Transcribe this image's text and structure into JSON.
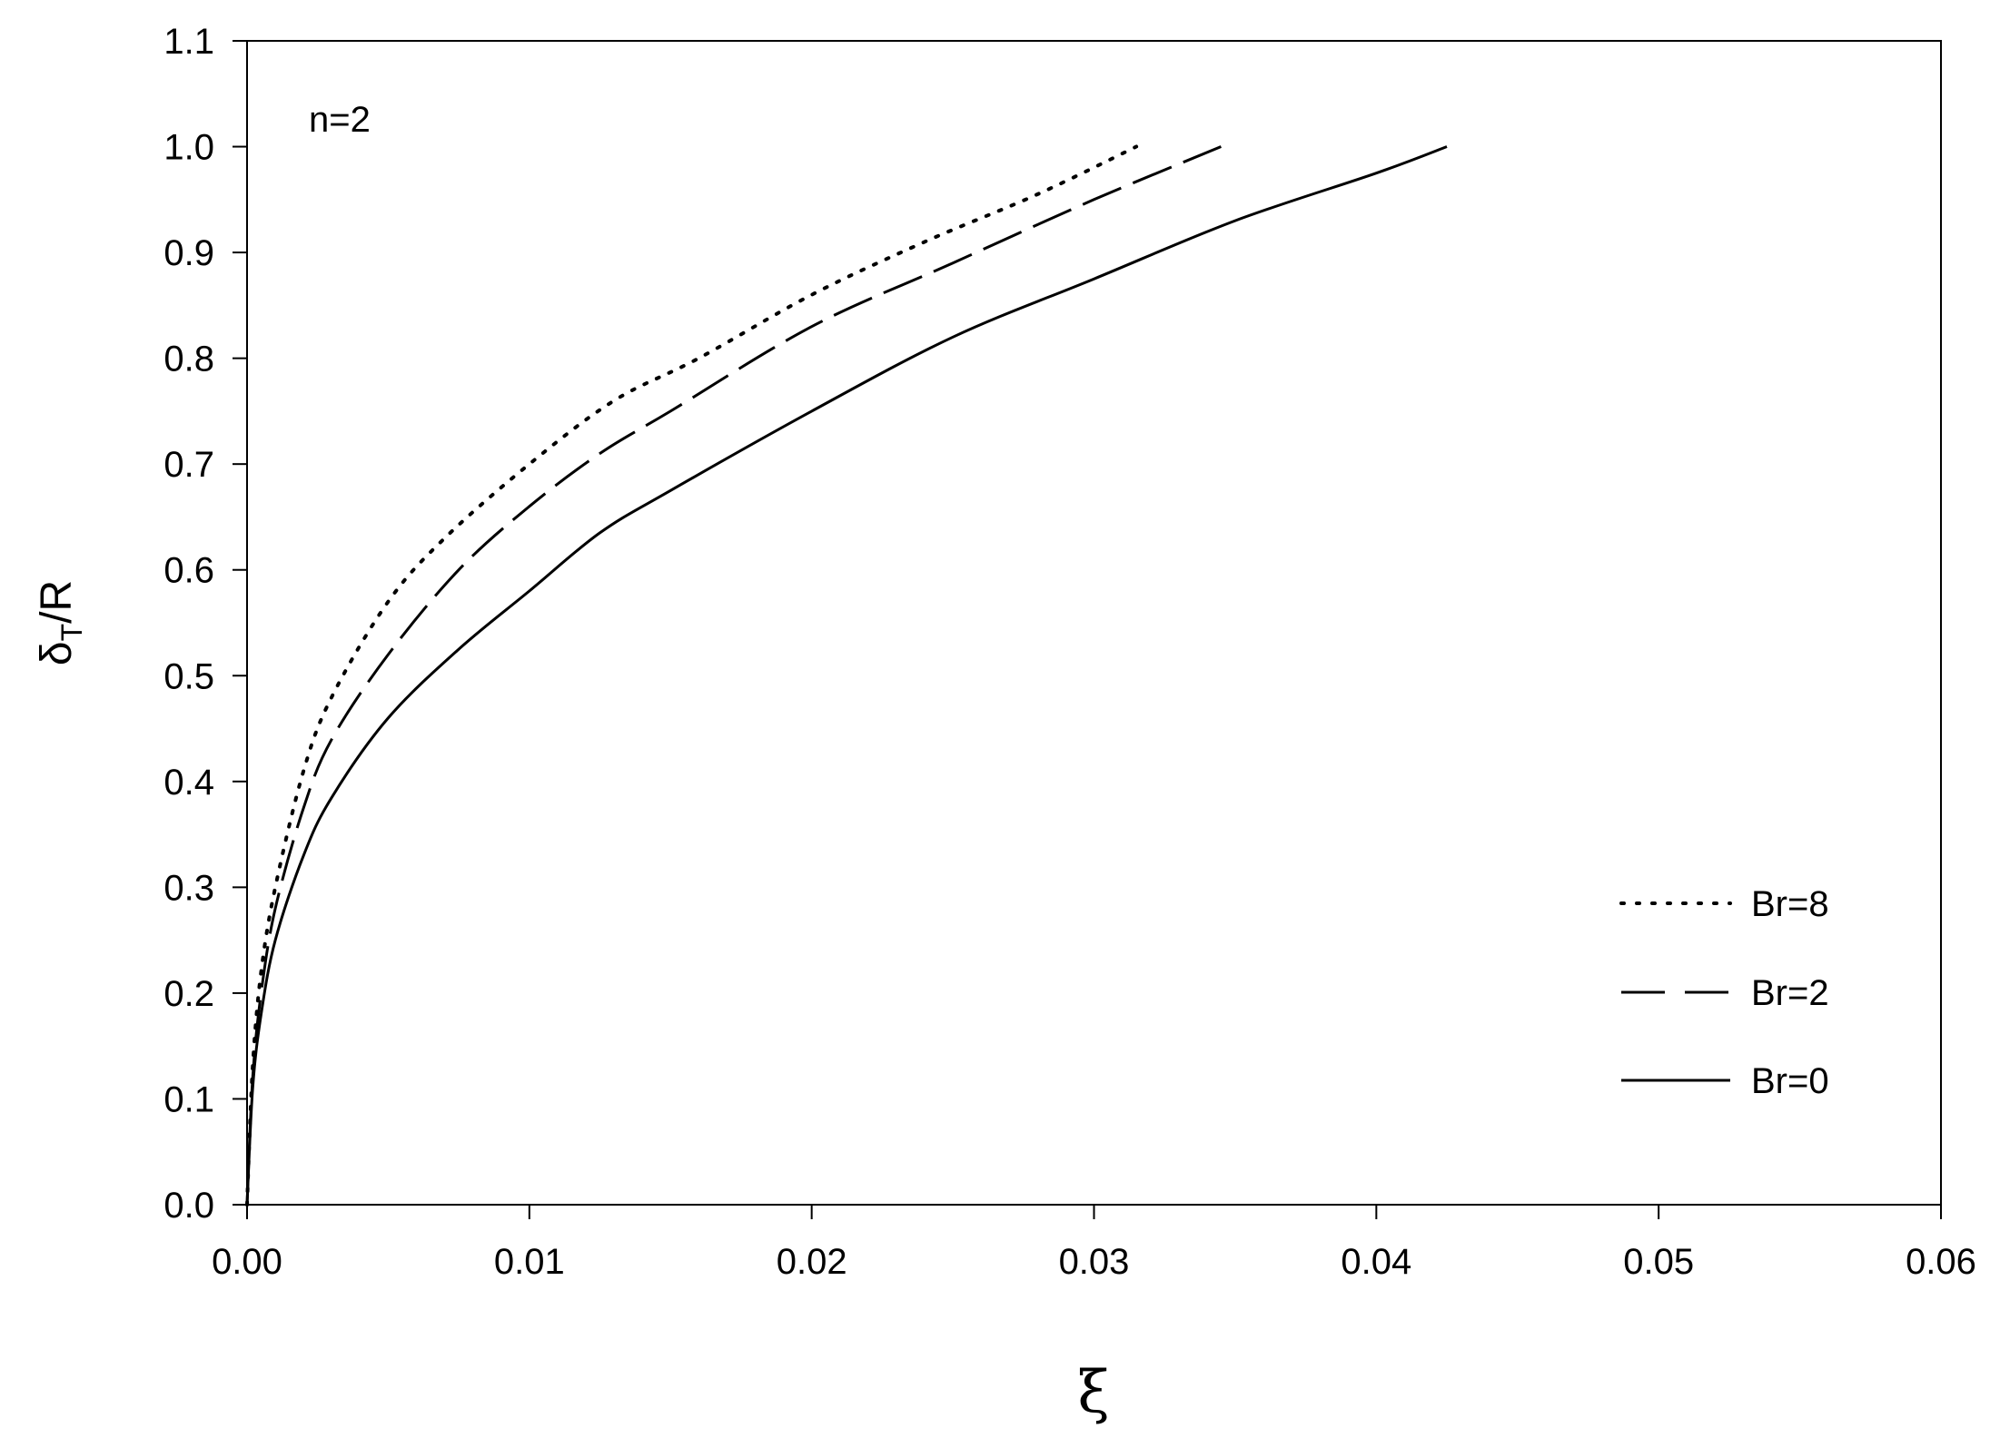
{
  "chart_data": {
    "type": "line",
    "title": "",
    "annotation": "n=2",
    "xlabel": "ξ",
    "ylabel": {
      "main": "δ",
      "sub": "T",
      "rest": "/R"
    },
    "xlim": [
      0,
      0.06
    ],
    "ylim": [
      0,
      1.1
    ],
    "xticks": [
      "0.00",
      "0.01",
      "0.02",
      "0.03",
      "0.04",
      "0.05",
      "0.06"
    ],
    "yticks": [
      "0.0",
      "0.1",
      "0.2",
      "0.3",
      "0.4",
      "0.5",
      "0.6",
      "0.7",
      "0.8",
      "0.9",
      "1.0",
      "1.1"
    ],
    "grid": false,
    "legend_position": "bottom-right",
    "series": [
      {
        "name": "Br=8",
        "style": "dotted",
        "x": [
          0,
          0.0002,
          0.0005,
          0.001,
          0.002,
          0.003,
          0.005,
          0.007,
          0.01,
          0.013,
          0.016,
          0.02,
          0.024,
          0.028,
          0.0315
        ],
        "y": [
          0,
          0.13,
          0.22,
          0.3,
          0.41,
          0.48,
          0.57,
          0.63,
          0.7,
          0.76,
          0.8,
          0.86,
          0.91,
          0.955,
          1.0
        ]
      },
      {
        "name": "Br=2",
        "style": "dashed",
        "x": [
          0,
          0.0002,
          0.0005,
          0.001,
          0.002,
          0.003,
          0.005,
          0.0075,
          0.01,
          0.0125,
          0.015,
          0.02,
          0.025,
          0.03,
          0.0345
        ],
        "y": [
          0,
          0.12,
          0.2,
          0.28,
          0.375,
          0.44,
          0.52,
          0.6,
          0.66,
          0.71,
          0.75,
          0.83,
          0.89,
          0.95,
          1.0
        ]
      },
      {
        "name": "Br=0",
        "style": "solid",
        "x": [
          0,
          0.0002,
          0.0005,
          0.001,
          0.002,
          0.003,
          0.005,
          0.0075,
          0.01,
          0.0125,
          0.015,
          0.02,
          0.025,
          0.03,
          0.035,
          0.04,
          0.0425
        ],
        "y": [
          0,
          0.11,
          0.18,
          0.25,
          0.33,
          0.385,
          0.46,
          0.525,
          0.58,
          0.635,
          0.675,
          0.75,
          0.82,
          0.875,
          0.93,
          0.975,
          1.0
        ]
      }
    ]
  }
}
